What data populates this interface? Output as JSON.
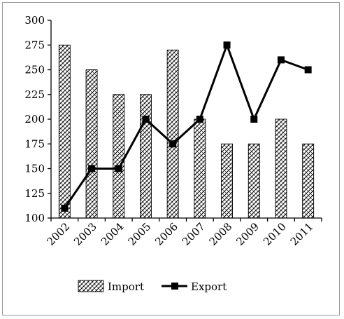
{
  "chart_data": {
    "type": "bar",
    "categories": [
      "2002",
      "2003",
      "2004",
      "2005",
      "2006",
      "2007",
      "2008",
      "2009",
      "2010",
      "2011"
    ],
    "series": [
      {
        "name": "Import",
        "type": "bar",
        "values": [
          275,
          250,
          225,
          225,
          270,
          200,
          175,
          175,
          200,
          175
        ]
      },
      {
        "name": "Export",
        "type": "line",
        "values": [
          110,
          150,
          150,
          200,
          175,
          200,
          275,
          200,
          260,
          250
        ]
      }
    ],
    "ylim": [
      100,
      300
    ],
    "yticks": [
      "100",
      "125",
      "150",
      "175",
      "200",
      "225",
      "250",
      "275",
      "300"
    ],
    "grid": false,
    "legend": "bottom"
  }
}
